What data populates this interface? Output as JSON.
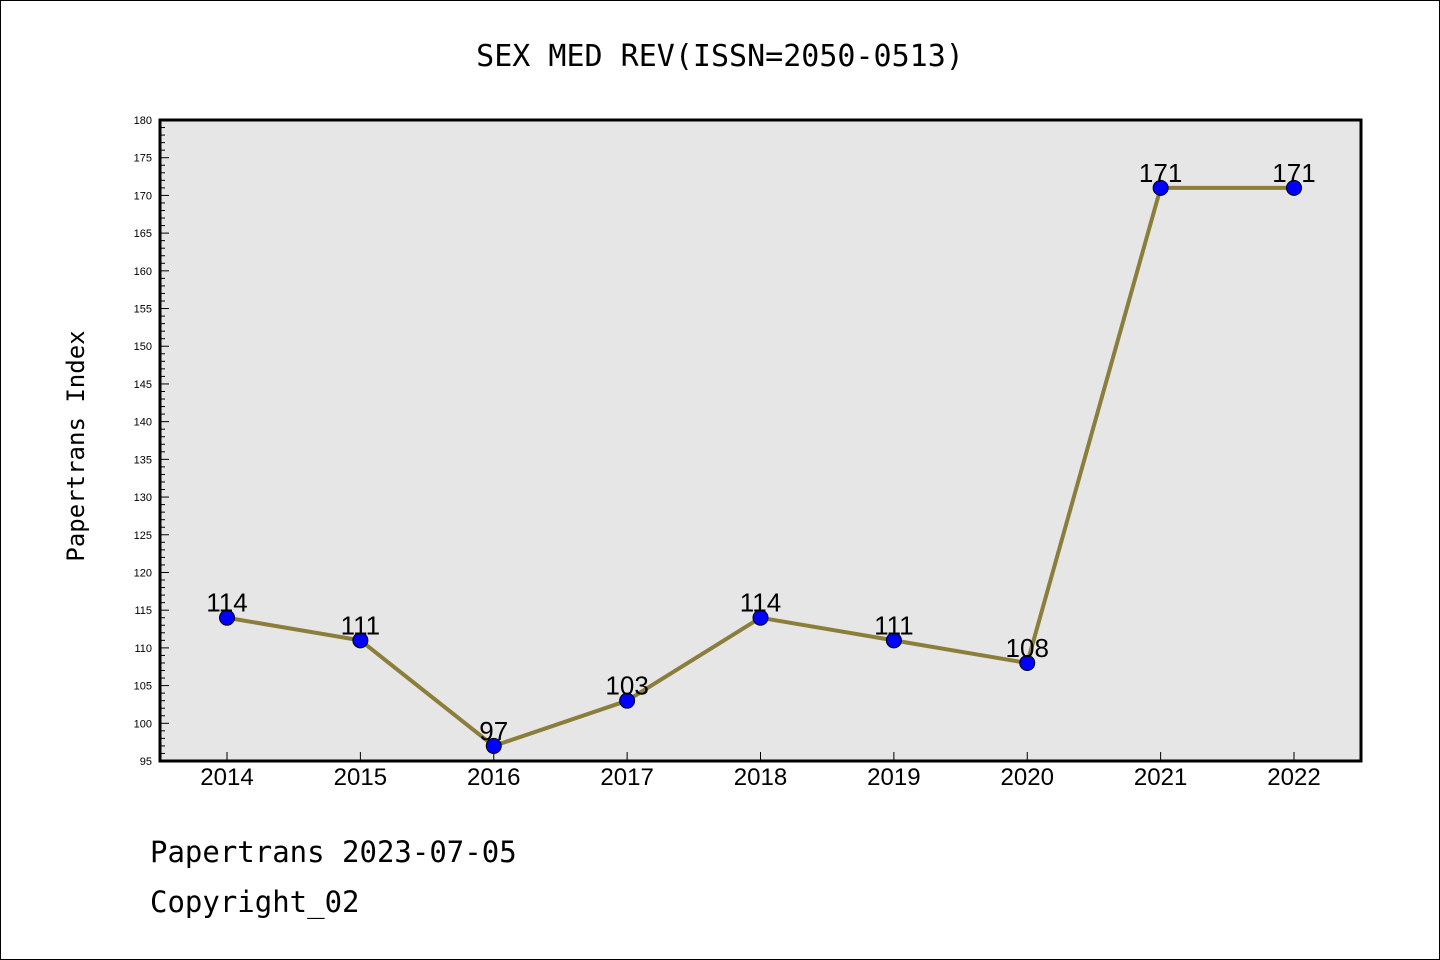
{
  "footer": {
    "line1": "Papertrans 2023-07-05",
    "line2": "Copyright_02"
  },
  "chart_data": {
    "type": "line",
    "title": "SEX MED REV(ISSN=2050-0513)",
    "xlabel": "",
    "ylabel": "Papertrans Index",
    "categories": [
      "2014",
      "2015",
      "2016",
      "2017",
      "2018",
      "2019",
      "2020",
      "2021",
      "2022"
    ],
    "series": [
      {
        "values": [
          114,
          111,
          97,
          103,
          114,
          111,
          108,
          171,
          171
        ]
      }
    ],
    "ylim": [
      95,
      180
    ],
    "yticks": [
      95,
      100,
      105,
      110,
      115,
      120,
      125,
      130,
      135,
      140,
      145,
      150,
      155,
      160,
      165,
      170,
      175,
      180
    ],
    "grid": false,
    "legend": "none",
    "colors": {
      "line": "#8b7d3a",
      "marker": "#0000ff",
      "plot_bg": "#e6e6e6"
    }
  }
}
